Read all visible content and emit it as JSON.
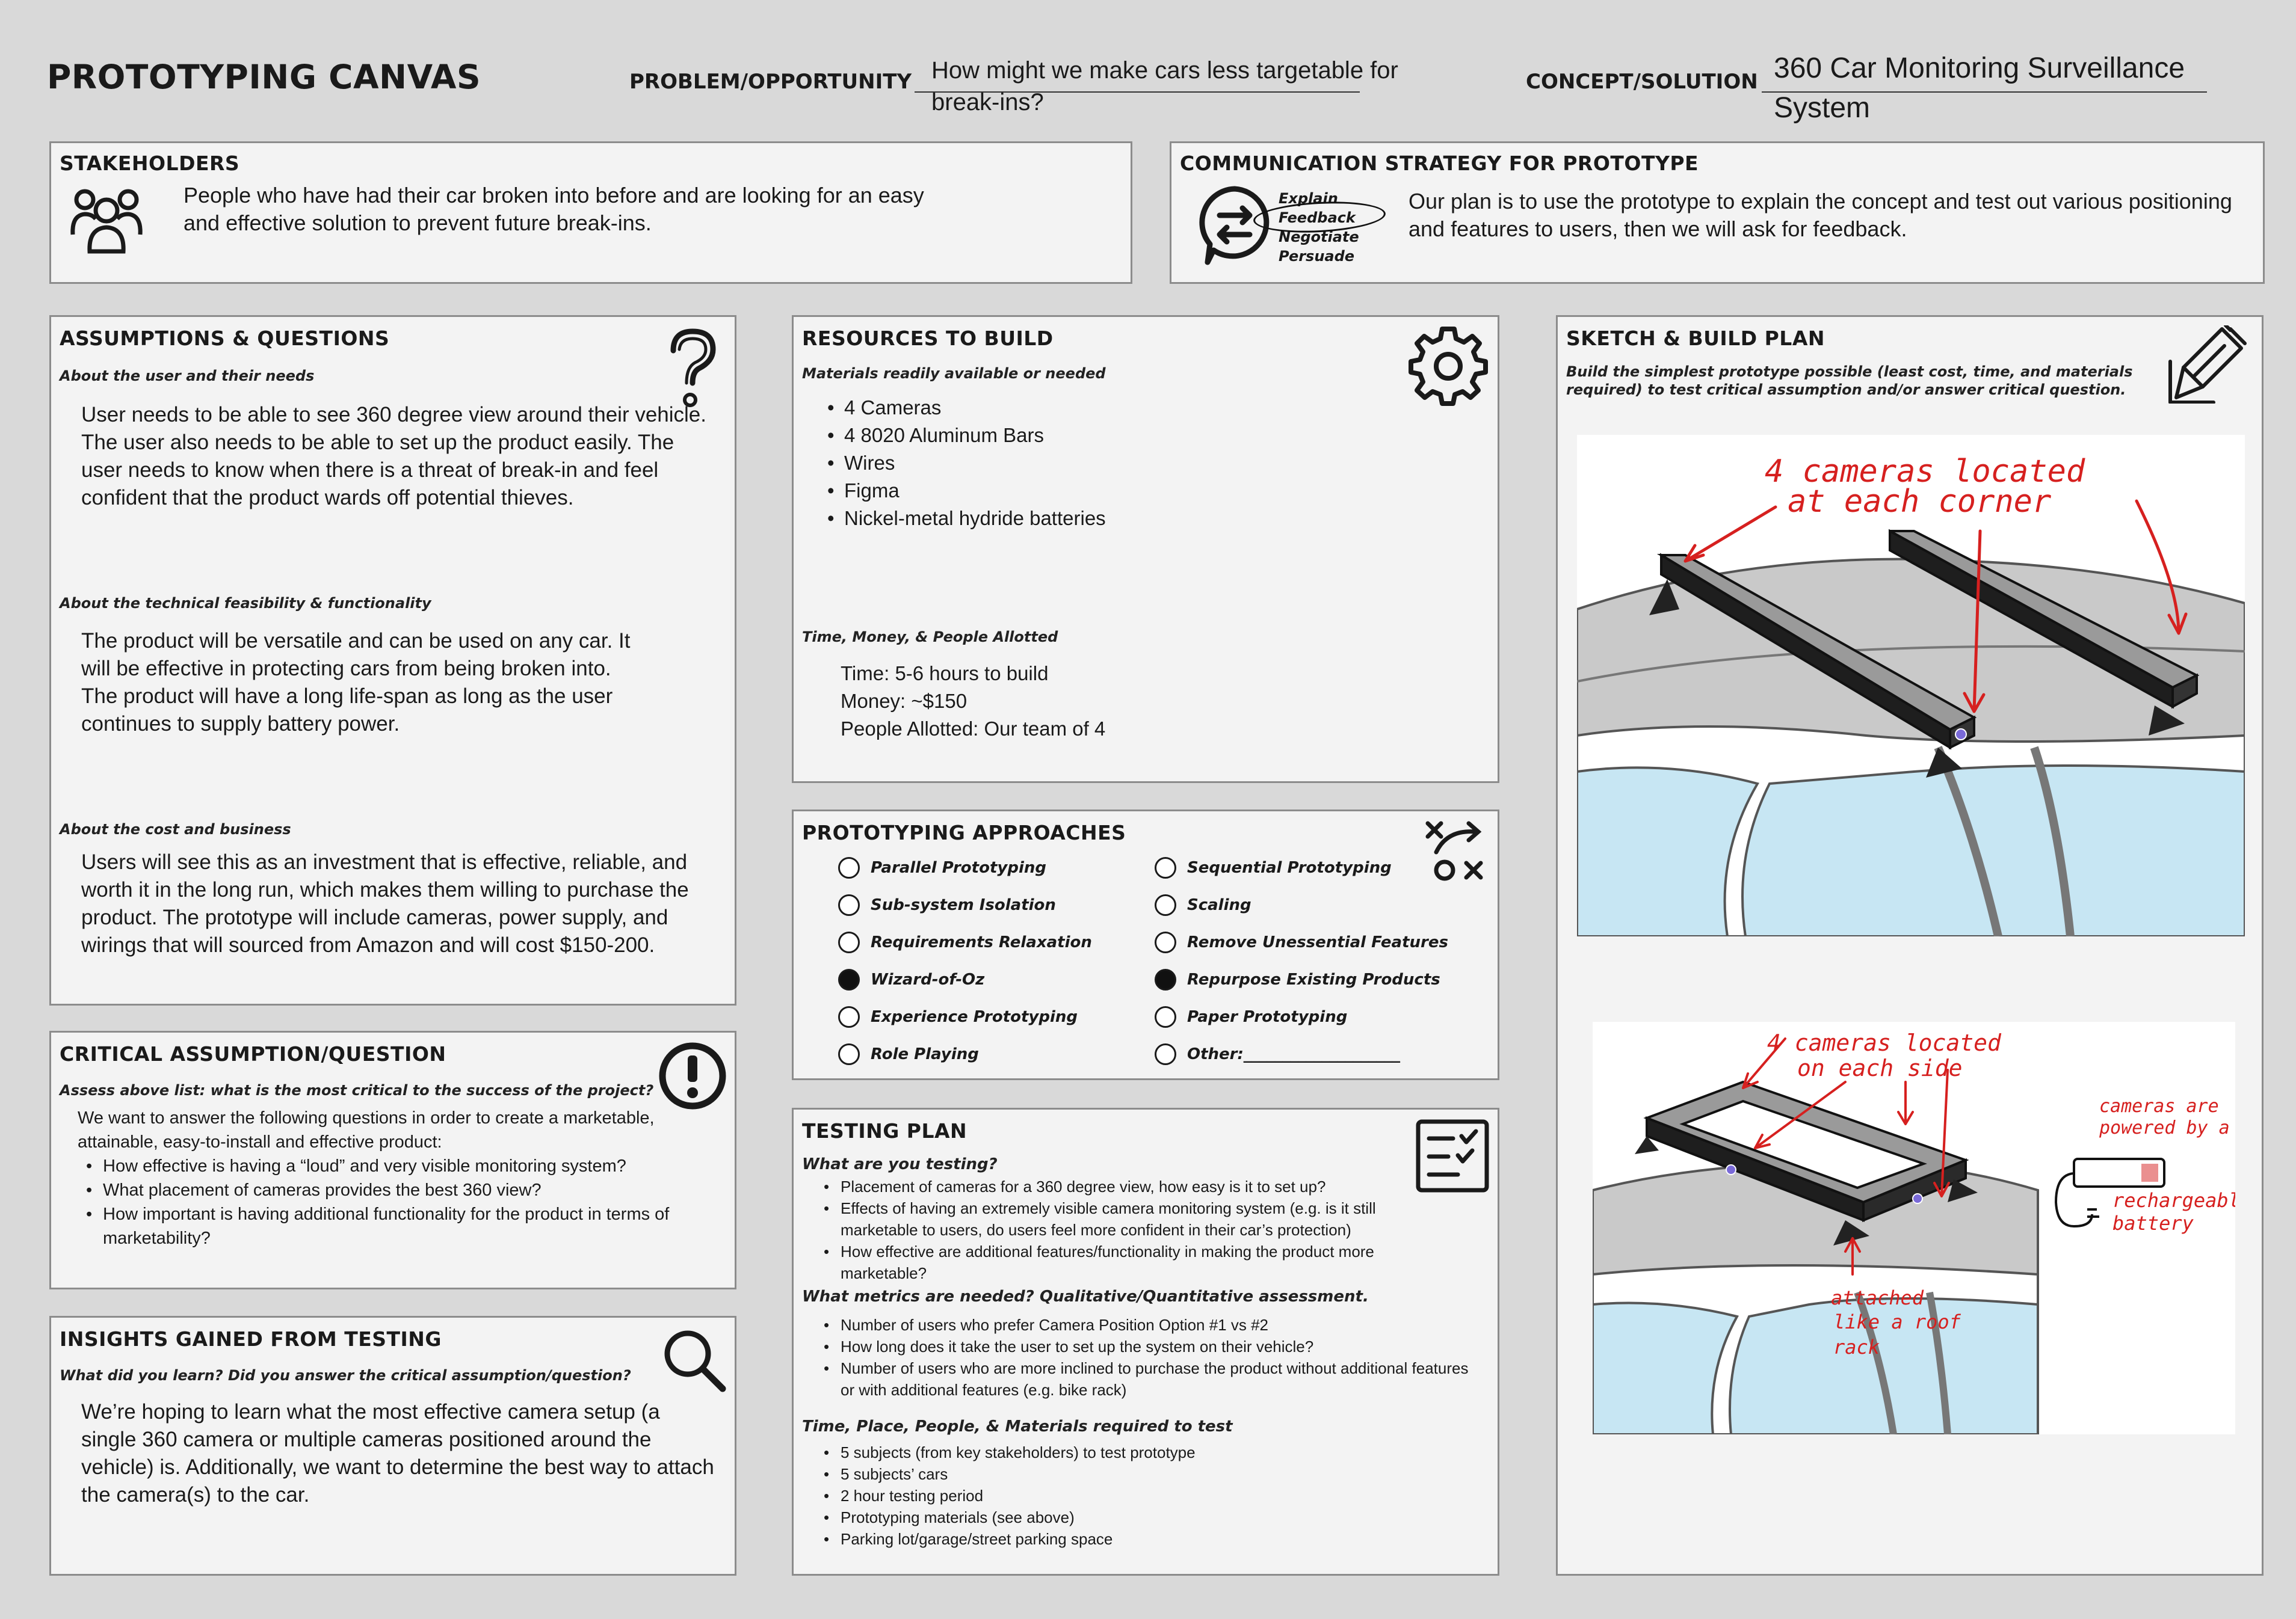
{
  "header": {
    "title": "PROTOTYPING CANVAS",
    "problem_label": "PROBLEM/OPPORTUNITY",
    "problem_line1": "How might we make cars less targetable for",
    "problem_line2": "break-ins?",
    "concept_label": "CONCEPT/SOLUTION",
    "concept_line1": "360 Car Monitoring Surveillance",
    "concept_line2": "System"
  },
  "stakeholders": {
    "title": "STAKEHOLDERS",
    "icon": "people-group-icon",
    "text": "People who have had their car broken into before and are looking for an easy and effective solution to prevent future break-ins."
  },
  "communication": {
    "title": "COMMUNICATION STRATEGY FOR PROTOTYPE",
    "icon": "exchange-speech-bubble-icon",
    "options": [
      "Explain",
      "Feedback",
      "Negotiate",
      "Persuade"
    ],
    "text": "Our plan is to use the prototype to explain the concept and test out various positioning and features to users, then we will ask for feedback."
  },
  "assumptions": {
    "title": "ASSUMPTIONS & QUESTIONS",
    "icon": "question-mark-icon",
    "user_sub": "About the user and their needs",
    "user_text": "User needs to be able to see 360 degree view around their vehicle. The user also needs to be able to set up the product easily. The user needs to know when there is a threat of break-in and feel confident that the product wards off potential thieves.",
    "tech_sub": "About the technical feasibility & functionality",
    "tech_text": "The product will be versatile and  can be used on any car. It will be effective in protecting cars from being broken into. The product will have a long life-span as long as the user continues to supply battery power.",
    "cost_sub": "About the cost and business",
    "cost_text": "Users will see this as an investment that is effective, reliable, and worth it in the long run, which makes them willing to purchase the product. The prototype will include cameras, power supply, and wirings that will sourced from Amazon and will cost $150-200."
  },
  "critical": {
    "title": "CRITICAL ASSUMPTION/QUESTION",
    "icon": "exclamation-icon",
    "sub": "Assess above list: what is the most critical to the success of the project?",
    "intro": "We want to answer the following questions in order to create a marketable, attainable, easy-to-install and effective product:",
    "items": [
      "How effective is having a “loud” and very visible monitoring system?",
      "What placement of cameras provides the best 360 view?",
      "How important is having additional functionality for the product in terms of marketability?"
    ]
  },
  "insights": {
    "title": "INSIGHTS GAINED FROM TESTING",
    "icon": "magnifier-icon",
    "sub": "What did you learn? Did you answer the critical assumption/question?",
    "text": "We’re hoping to learn what the most effective camera setup (a single 360 camera or multiple cameras positioned around the vehicle) is. Additionally, we want to determine the best way to attach the camera(s) to the car."
  },
  "resources": {
    "title": "RESOURCES TO BUILD",
    "icon": "gear-icon",
    "materials_sub": "Materials readily available or needed",
    "materials": [
      "4 Cameras",
      "4 8020 Aluminum Bars",
      "Wires",
      "Figma",
      "Nickel-metal hydride batteries"
    ],
    "time_sub": "Time, Money, & People Allotted",
    "time_lines": [
      "Time: 5-6 hours to build",
      "Money: ~$150",
      "People Allotted: Our team of 4"
    ]
  },
  "approaches": {
    "title": "PROTOTYPING APPROACHES",
    "icon": "strategy-play-icon",
    "left": [
      {
        "label": "Parallel Prototyping",
        "selected": false
      },
      {
        "label": "Sub-system Isolation",
        "selected": false
      },
      {
        "label": "Requirements Relaxation",
        "selected": false
      },
      {
        "label": "Wizard-of-Oz",
        "selected": true
      },
      {
        "label": "Experience Prototyping",
        "selected": false
      },
      {
        "label": "Role Playing",
        "selected": false
      }
    ],
    "right": [
      {
        "label": "Sequential Prototyping",
        "selected": false
      },
      {
        "label": "Scaling",
        "selected": false
      },
      {
        "label": "Remove Unessential Features",
        "selected": false
      },
      {
        "label": "Repurpose Existing Products",
        "selected": true
      },
      {
        "label": "Paper Prototyping",
        "selected": false
      },
      {
        "label": "Other:____________________",
        "selected": false
      }
    ]
  },
  "testing": {
    "title": "TESTING PLAN",
    "icon": "checklist-icon",
    "what_sub": "What are you testing?",
    "what_items": [
      "Placement of cameras for a 360 degree view, how easy is it to set up?",
      "Effects of having an extremely visible camera monitoring system (e.g. is it still marketable to users, do users feel more confident in their car’s protection)",
      "How effective are additional features/functionality in making the product more marketable?"
    ],
    "metrics_sub": "What metrics are needed? Qualitative/Quantitative assessment.",
    "metrics_items": [
      "Number of users who prefer Camera Position Option #1 vs #2",
      "How long does it take the user to set up the system on their vehicle?",
      "Number of users who are more inclined to purchase the product without additional features or with additional features (e.g. bike rack)"
    ],
    "req_sub": "Time, Place, People, & Materials required to test",
    "req_items": [
      "5 subjects (from key stakeholders) to test prototype",
      "5 subjects’ cars",
      "2 hour testing period",
      "Prototyping materials (see above)",
      "Parking lot/garage/street parking space"
    ]
  },
  "sketch": {
    "title": "SKETCH & BUILD PLAN",
    "icon": "pencil-notepad-icon",
    "sub": "Build the simplest prototype possible (least cost, time, and materials required) to test critical assumption and/or answer critical question.",
    "sketch1_note1": "4 cameras located",
    "sketch1_note2": "at each corner",
    "sketch2_note1": "4 cameras located",
    "sketch2_note2": "on each side",
    "sketch2_power1": "cameras are",
    "sketch2_power2": "powered by a",
    "sketch2_battery1": "rechargeable",
    "sketch2_battery2": "battery",
    "sketch2_attach1": "attached",
    "sketch2_attach2": "like a roof",
    "sketch2_attach3": "rack",
    "colors": {
      "annotation": "#d6201f",
      "glass": "#c7e6f3",
      "roof": "#c9c9c9",
      "bar": "#222222"
    }
  }
}
